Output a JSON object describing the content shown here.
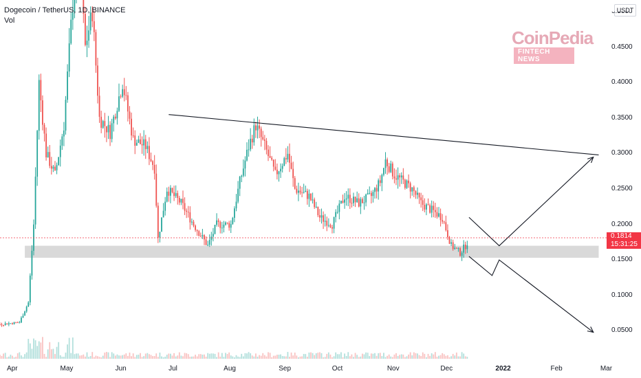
{
  "header": {
    "symbol": "Dogecoin / TetherUS, 1D, BINANCE",
    "indicator": "Vol"
  },
  "axis_unit": "USDT",
  "watermark": {
    "brand": "CoinPedia",
    "tagline": "FINTECH NEWS"
  },
  "price_label": {
    "price": "0.1814",
    "countdown": "15:31:25"
  },
  "colors": {
    "up": "#26a69a",
    "down": "#ef5350",
    "support_zone": "#d9d9d9",
    "lines": "#131722"
  },
  "chart_data": {
    "type": "candlestick",
    "title": "Dogecoin / TetherUS, 1D, BINANCE",
    "ylim": [
      0.0,
      0.5
    ],
    "y_ticks": [
      "0.5000",
      "0.4500",
      "0.4000",
      "0.3500",
      "0.3000",
      "0.2500",
      "0.2000",
      "0.1500",
      "0.1000",
      "0.0500"
    ],
    "x_ticks": [
      {
        "label": "Apr",
        "date": "2021-04-01"
      },
      {
        "label": "May",
        "date": "2021-05-01"
      },
      {
        "label": "Jun",
        "date": "2021-06-01"
      },
      {
        "label": "Jul",
        "date": "2021-07-01"
      },
      {
        "label": "Aug",
        "date": "2021-08-01"
      },
      {
        "label": "Sep",
        "date": "2021-09-01"
      },
      {
        "label": "Oct",
        "date": "2021-10-01"
      },
      {
        "label": "Nov",
        "date": "2021-11-01"
      },
      {
        "label": "Dec",
        "date": "2021-12-01"
      },
      {
        "label": "2022",
        "date": "2022-01-01"
      },
      {
        "label": "Feb",
        "date": "2022-02-01"
      },
      {
        "label": "Mar",
        "date": "2022-03-01"
      }
    ],
    "price_path": [
      [
        "2021-03-01",
        0.052
      ],
      [
        "2021-03-20",
        0.058
      ],
      [
        "2021-04-05",
        0.062
      ],
      [
        "2021-04-10",
        0.09
      ],
      [
        "2021-04-13",
        0.2
      ],
      [
        "2021-04-16",
        0.4
      ],
      [
        "2021-04-20",
        0.3
      ],
      [
        "2021-04-25",
        0.27
      ],
      [
        "2021-04-30",
        0.34
      ],
      [
        "2021-05-04",
        0.48
      ],
      [
        "2021-05-08",
        0.6
      ],
      [
        "2021-05-12",
        0.45
      ],
      [
        "2021-05-16",
        0.5
      ],
      [
        "2021-05-20",
        0.35
      ],
      [
        "2021-05-26",
        0.33
      ],
      [
        "2021-06-02",
        0.4
      ],
      [
        "2021-06-08",
        0.32
      ],
      [
        "2021-06-15",
        0.31
      ],
      [
        "2021-06-20",
        0.28
      ],
      [
        "2021-06-22",
        0.18
      ],
      [
        "2021-06-27",
        0.25
      ],
      [
        "2021-07-05",
        0.23
      ],
      [
        "2021-07-12",
        0.2
      ],
      [
        "2021-07-20",
        0.17
      ],
      [
        "2021-07-25",
        0.2
      ],
      [
        "2021-08-02",
        0.2
      ],
      [
        "2021-08-07",
        0.26
      ],
      [
        "2021-08-12",
        0.31
      ],
      [
        "2021-08-16",
        0.34
      ],
      [
        "2021-08-21",
        0.31
      ],
      [
        "2021-08-27",
        0.27
      ],
      [
        "2021-09-03",
        0.3
      ],
      [
        "2021-09-07",
        0.25
      ],
      [
        "2021-09-15",
        0.24
      ],
      [
        "2021-09-21",
        0.21
      ],
      [
        "2021-09-28",
        0.2
      ],
      [
        "2021-10-05",
        0.24
      ],
      [
        "2021-10-13",
        0.23
      ],
      [
        "2021-10-20",
        0.24
      ],
      [
        "2021-10-25",
        0.26
      ],
      [
        "2021-10-28",
        0.29
      ],
      [
        "2021-11-02",
        0.27
      ],
      [
        "2021-11-07",
        0.26
      ],
      [
        "2021-11-12",
        0.25
      ],
      [
        "2021-11-17",
        0.23
      ],
      [
        "2021-11-23",
        0.22
      ],
      [
        "2021-11-29",
        0.21
      ],
      [
        "2021-12-04",
        0.17
      ],
      [
        "2021-12-09",
        0.16
      ],
      [
        "2021-12-12",
        0.17
      ],
      [
        "2021-12-14",
        0.18
      ]
    ],
    "support_zone": {
      "from": "2021-04-08",
      "to": "2022-02-25",
      "low": 0.153,
      "high": 0.17
    },
    "resistance_line": {
      "from": [
        "2021-06-28",
        0.355
      ],
      "to": [
        "2022-02-25",
        0.298
      ]
    },
    "projection_up": [
      [
        "2021-12-14",
        0.21
      ],
      [
        "2021-12-31",
        0.17
      ],
      [
        "2022-02-22",
        0.295
      ]
    ],
    "projection_down": [
      [
        "2021-12-14",
        0.155
      ],
      [
        "2021-12-27",
        0.128
      ],
      [
        "2021-12-31",
        0.15
      ],
      [
        "2022-02-22",
        0.048
      ]
    ],
    "last_price": 0.1814
  }
}
